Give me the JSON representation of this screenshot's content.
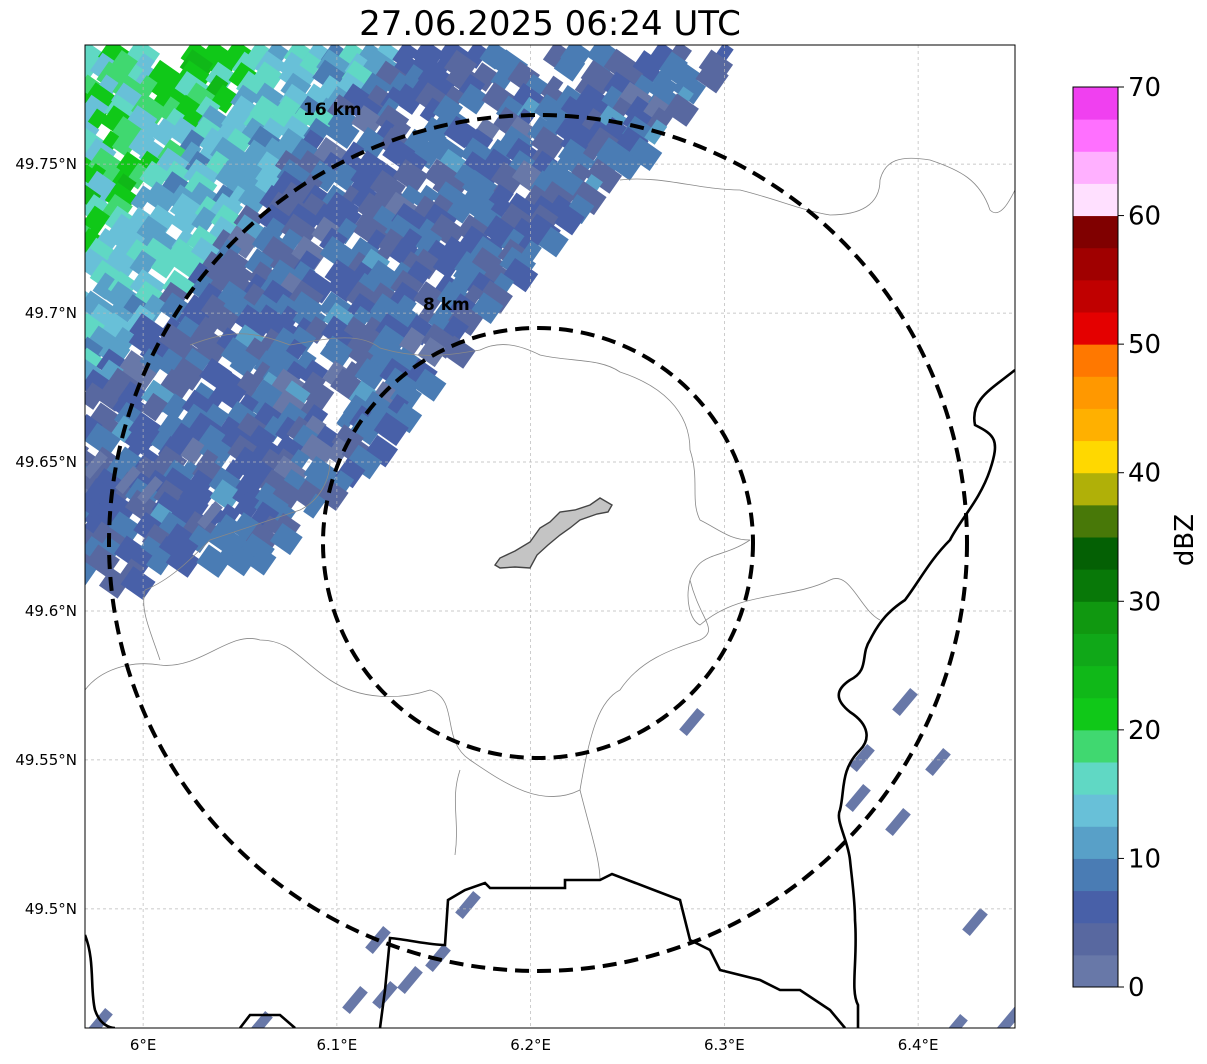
{
  "title": "27.06.2025 06:24 UTC",
  "map": {
    "lon_range": [
      5.97,
      6.45
    ],
    "lat_range": [
      49.46,
      49.79
    ],
    "x_ticks": [
      {
        "value": 6.0,
        "label": "6°E"
      },
      {
        "value": 6.1,
        "label": "6.1°E"
      },
      {
        "value": 6.2,
        "label": "6.2°E"
      },
      {
        "value": 6.3,
        "label": "6.3°E"
      },
      {
        "value": 6.4,
        "label": "6.4°E"
      }
    ],
    "y_ticks": [
      {
        "value": 49.5,
        "label": "49.5°N"
      },
      {
        "value": 49.55,
        "label": "49.55°N"
      },
      {
        "value": 49.6,
        "label": "49.6°N"
      },
      {
        "value": 49.65,
        "label": "49.65°N"
      },
      {
        "value": 49.7,
        "label": "49.7°N"
      },
      {
        "value": 49.75,
        "label": "49.75°N"
      }
    ],
    "grid": true,
    "center": {
      "lon": 6.2,
      "lat": 49.622
    },
    "rings": [
      {
        "radius_km": 8,
        "label": "8 km"
      },
      {
        "radius_km": 16,
        "label": "16 km"
      }
    ]
  },
  "colorbar": {
    "label": "dBZ",
    "min": 0,
    "max": 70,
    "ticks": [
      "0",
      "10",
      "20",
      "30",
      "40",
      "50",
      "60",
      "70"
    ],
    "colors": [
      "#6878a8",
      "#5868a0",
      "#4860a8",
      "#4a7cb4",
      "#58a0c8",
      "#68c0d8",
      "#60d8c4",
      "#40d870",
      "#10c818",
      "#10b818",
      "#10a818",
      "#109810",
      "#087808",
      "#046004",
      "#487808",
      "#b0b008",
      "#ffd800",
      "#ffb000",
      "#ff9800",
      "#ff7800",
      "#e40000",
      "#c00000",
      "#a00000",
      "#800000",
      "#ffe0ff",
      "#ffb0ff",
      "#ff70ff",
      "#f040f0"
    ]
  }
}
